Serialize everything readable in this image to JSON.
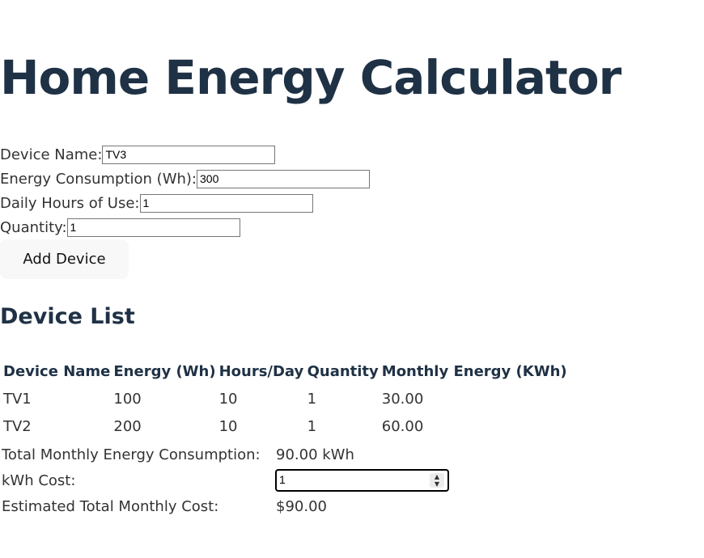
{
  "title": "Home Energy Calculator",
  "form": {
    "device_name_label": "Device Name:",
    "device_name_value": "TV3",
    "energy_label": "Energy Consumption (Wh):",
    "energy_value": "300",
    "hours_label": "Daily Hours of Use:",
    "hours_value": "1",
    "quantity_label": "Quantity:",
    "quantity_value": "1",
    "add_button": "Add Device"
  },
  "device_list": {
    "heading": "Device List",
    "columns": [
      "Device Name",
      "Energy (Wh)",
      "Hours/Day",
      "Quantity",
      "Monthly Energy (KWh)"
    ],
    "rows": [
      [
        "TV1",
        "100",
        "10",
        "1",
        "30.00"
      ],
      [
        "TV2",
        "200",
        "10",
        "1",
        "60.00"
      ]
    ]
  },
  "summary": {
    "total_label": "Total Monthly Energy Consumption:",
    "total_value": "90.00 kWh",
    "cost_label": "kWh Cost:",
    "cost_value": "1",
    "estimated_label": "Estimated Total Monthly Cost:",
    "estimated_value": "$90.00"
  },
  "icons": {
    "spinner": "spinner-arrows-icon"
  }
}
